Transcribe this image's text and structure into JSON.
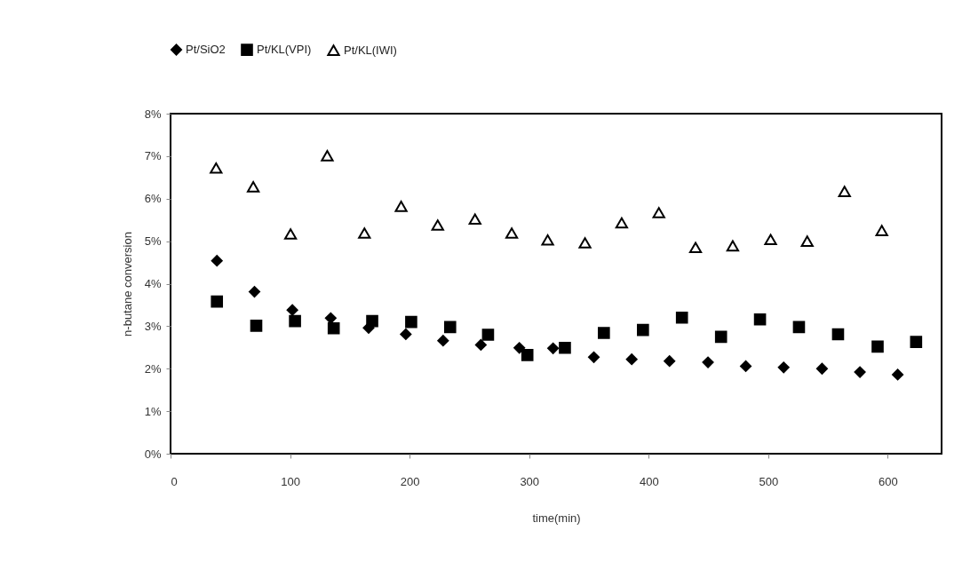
{
  "chart_data": {
    "type": "scatter",
    "xlabel": "time(min)",
    "ylabel": "n-butane conversion",
    "legend": "top",
    "grid": false,
    "xlim": [
      0,
      645
    ],
    "xticks": [
      0,
      100,
      200,
      300,
      400,
      500,
      600
    ],
    "ylim": [
      0,
      8
    ],
    "yticks": [
      {
        "value": 0,
        "label": "0%"
      },
      {
        "value": 1,
        "label": "1%"
      },
      {
        "value": 2,
        "label": "2%"
      },
      {
        "value": 3,
        "label": "3%"
      },
      {
        "value": 4,
        "label": "4%"
      },
      {
        "value": 5,
        "label": "5%"
      },
      {
        "value": 6,
        "label": "6%"
      },
      {
        "value": 7,
        "label": "7%"
      },
      {
        "value": 8,
        "label": "8%"
      }
    ],
    "series": [
      {
        "name": "Pt/SiO2",
        "color": "#000000",
        "marker": "diamond",
        "x": [
          38.8,
          70.2,
          101.9,
          134,
          165.7,
          196.8,
          228,
          259.6,
          291.8,
          320,
          354.1,
          385.8,
          417.4,
          449.6,
          481.2,
          512.9,
          545,
          576.7,
          608.3
        ],
        "values": [
          4.54,
          3.81,
          3.38,
          3.19,
          2.96,
          2.81,
          2.66,
          2.56,
          2.49,
          2.48,
          2.27,
          2.22,
          2.18,
          2.15,
          2.06,
          2.03,
          2.0,
          1.92,
          1.86
        ]
      },
      {
        "name": "Pt/KL(VPI)",
        "color": "#000000",
        "marker": "square",
        "x": [
          38.8,
          71.7,
          104.1,
          136.5,
          168.7,
          201.3,
          233.9,
          265.6,
          298.5,
          329.9,
          362.5,
          395.2,
          427.8,
          460.5,
          493.1,
          525.7,
          558.4,
          591.5,
          623.7
        ],
        "values": [
          3.58,
          3.01,
          3.12,
          2.95,
          3.12,
          3.1,
          2.98,
          2.8,
          2.32,
          2.49,
          2.84,
          2.91,
          3.2,
          2.75,
          3.16,
          2.98,
          2.81,
          2.52,
          2.63
        ]
      },
      {
        "name": "Pt/KL(IWI)",
        "color": "#000000",
        "marker": "triangle",
        "x": [
          38.1,
          69.2,
          100.4,
          131.1,
          162.2,
          192.9,
          223.5,
          254.7,
          285.4,
          315.5,
          346.7,
          377.4,
          408.5,
          439.2,
          470.3,
          502,
          532.6,
          563.8,
          595
        ],
        "values": [
          6.72,
          6.28,
          5.17,
          7.01,
          5.19,
          5.82,
          5.38,
          5.52,
          5.19,
          5.03,
          4.96,
          5.43,
          5.67,
          4.85,
          4.89,
          5.04,
          5.0,
          6.17,
          5.25
        ]
      }
    ]
  }
}
